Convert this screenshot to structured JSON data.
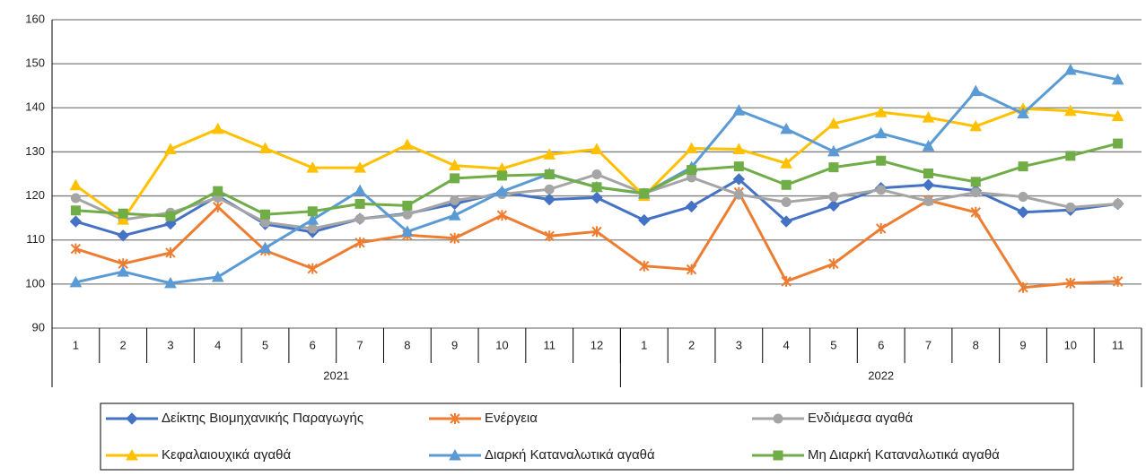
{
  "chart_data": {
    "type": "line",
    "category_groups": [
      {
        "name": "2021",
        "categories": [
          "1",
          "2",
          "3",
          "4",
          "5",
          "6",
          "7",
          "8",
          "9",
          "10",
          "11",
          "12"
        ]
      },
      {
        "name": "2022",
        "categories": [
          "1",
          "2",
          "3",
          "4",
          "5",
          "6",
          "7",
          "8",
          "9",
          "10",
          "11"
        ]
      }
    ],
    "ylim": [
      90,
      160
    ],
    "yticks": [
      90,
      100,
      110,
      120,
      130,
      140,
      150,
      160
    ],
    "grid": true,
    "legend": "bottom",
    "series": [
      {
        "name": "Δείκτης Βιομηχανικής Παραγωγής",
        "color": "#4472c4",
        "marker": "diamond",
        "values": [
          114.2,
          111,
          113.7,
          120,
          113.6,
          111.8,
          114.8,
          116,
          118.2,
          120.8,
          119.2,
          119.6,
          114.5,
          117.6,
          123.8,
          114.2,
          117.8,
          121.8,
          122.5,
          121.2,
          116.3,
          116.8,
          118.2
        ]
      },
      {
        "name": "Ενέργεια",
        "color": "#ed7d31",
        "marker": "star",
        "values": [
          108,
          104.6,
          107.1,
          117.5,
          107.6,
          103.5,
          109.4,
          111.1,
          110.4,
          115.6,
          110.9,
          111.9,
          104.1,
          103.3,
          120.8,
          100.6,
          104.6,
          112.6,
          119,
          116.3,
          99.2,
          100.2,
          100.6
        ]
      },
      {
        "name": "Ενδιάμεσα αγαθά",
        "color": "#a5a5a5",
        "marker": "circle",
        "values": [
          119.5,
          114.6,
          116.2,
          119.6,
          114,
          112.6,
          114.8,
          115.8,
          119,
          120.4,
          121.5,
          124.9,
          120.6,
          124.2,
          120.3,
          118.6,
          119.8,
          121.4,
          118.8,
          120.8,
          119.8,
          117.4,
          118.2
        ]
      },
      {
        "name": "Κεφαλαιουχικά αγαθά",
        "color": "#ffc000",
        "marker": "triangle",
        "values": [
          122.4,
          114.6,
          130.6,
          135.2,
          130.8,
          126.4,
          126.4,
          131.6,
          126.9,
          126.2,
          129.4,
          130.6,
          120,
          130.8,
          130.6,
          127.4,
          136.4,
          139,
          137.8,
          135.8,
          139.8,
          139.3,
          138.1
        ]
      },
      {
        "name": "Διαρκή Καταναλωτικά αγαθά",
        "color": "#5b9bd5",
        "marker": "triangle",
        "values": [
          100.4,
          102.8,
          100.2,
          101.6,
          108.2,
          114.6,
          121.2,
          111.9,
          115.6,
          121,
          125,
          122,
          120.5,
          126.5,
          139.4,
          135.2,
          130.1,
          134.2,
          131.3,
          143.8,
          138.7,
          148.6,
          146.4
        ]
      },
      {
        "name": "Μη Διαρκή Καταναλωτικά αγαθά",
        "color": "#70ad47",
        "marker": "square",
        "values": [
          116.7,
          116,
          115.4,
          121.1,
          115.8,
          116.5,
          118.2,
          117.8,
          124,
          124.6,
          124.9,
          122,
          120.6,
          125.9,
          126.7,
          122.5,
          126.5,
          128,
          125.1,
          123.2,
          126.7,
          129.1,
          131.9
        ]
      }
    ]
  }
}
